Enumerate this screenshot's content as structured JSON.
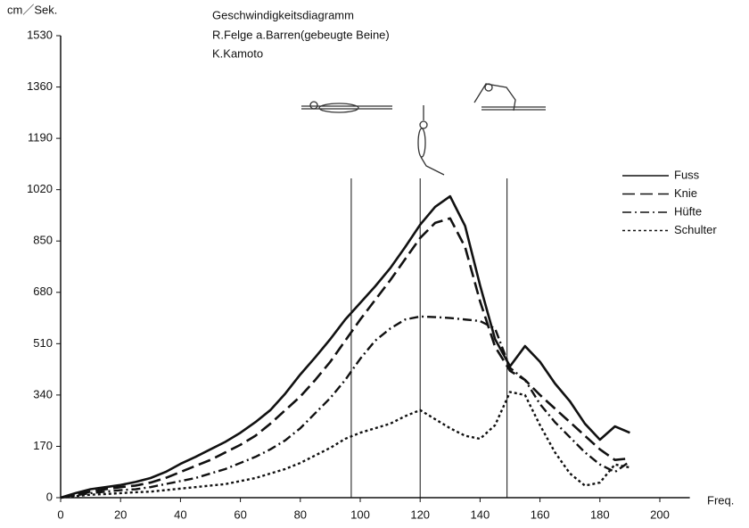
{
  "chart_data": {
    "type": "line",
    "title": "Geschwindigkeitsdiagramm",
    "subtitle": "R.Felge a.Barren(gebeugte Beine)",
    "author": "K.Kamoto",
    "y_label": "cm／Sek.",
    "x_label": "Freq.",
    "x": [
      0,
      5,
      10,
      15,
      20,
      25,
      30,
      35,
      40,
      45,
      50,
      55,
      60,
      65,
      70,
      75,
      80,
      85,
      90,
      95,
      100,
      105,
      110,
      115,
      120,
      125,
      130,
      135,
      140,
      145,
      150,
      155,
      160,
      165,
      170,
      175,
      180,
      185,
      190
    ],
    "series": [
      {
        "name": "Fuss",
        "color": "#111111",
        "style": "solid",
        "values": [
          0,
          15,
          28,
          35,
          42,
          52,
          65,
          85,
          112,
          135,
          160,
          185,
          215,
          250,
          290,
          345,
          408,
          465,
          525,
          590,
          645,
          700,
          760,
          830,
          904,
          963,
          998,
          900,
          703,
          525,
          435,
          502,
          450,
          378,
          319,
          245,
          192,
          236,
          215
        ]
      },
      {
        "name": "Knie",
        "color": "#111111",
        "style": "dash",
        "values": [
          0,
          10,
          20,
          28,
          35,
          40,
          50,
          65,
          85,
          105,
          125,
          150,
          175,
          205,
          245,
          290,
          335,
          390,
          450,
          520,
          590,
          655,
          720,
          790,
          860,
          910,
          925,
          830,
          650,
          500,
          420,
          390,
          340,
          295,
          250,
          205,
          160,
          125,
          130
        ]
      },
      {
        "name": "Hüfte",
        "color": "#111111",
        "style": "dashdot",
        "values": [
          0,
          8,
          15,
          20,
          25,
          28,
          35,
          45,
          55,
          65,
          80,
          95,
          115,
          135,
          160,
          190,
          230,
          280,
          330,
          390,
          460,
          520,
          560,
          590,
          600,
          598,
          595,
          590,
          585,
          560,
          430,
          390,
          310,
          250,
          200,
          150,
          110,
          85,
          120
        ]
      },
      {
        "name": "Schulter",
        "color": "#111111",
        "style": "dotted",
        "values": [
          0,
          5,
          10,
          12,
          15,
          18,
          20,
          25,
          30,
          35,
          40,
          45,
          55,
          65,
          80,
          95,
          115,
          140,
          165,
          195,
          215,
          230,
          245,
          270,
          290,
          260,
          230,
          205,
          195,
          240,
          350,
          340,
          240,
          150,
          80,
          40,
          50,
          110,
          100
        ]
      }
    ],
    "vlines": [
      97,
      120,
      149
    ],
    "xlim": [
      0,
      210
    ],
    "xticks": [
      0,
      20,
      40,
      60,
      80,
      100,
      120,
      140,
      160,
      180,
      200
    ],
    "ylim": [
      0,
      1530
    ],
    "yticks": [
      0,
      170,
      340,
      510,
      680,
      850,
      1020,
      1190,
      1360,
      1530
    ],
    "grid": false,
    "legend": "right"
  }
}
